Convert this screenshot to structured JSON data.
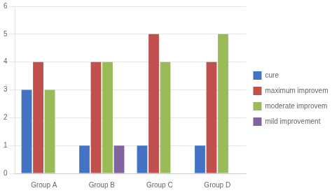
{
  "chart_data": {
    "type": "bar",
    "categories": [
      "Group A",
      "Group B",
      "Group C",
      "Group D"
    ],
    "series": [
      {
        "name": "cure",
        "color": "#4472C4",
        "values": [
          3,
          1,
          1,
          1
        ]
      },
      {
        "name": "maximum improvement",
        "color": "#C0504D",
        "values": [
          4,
          4,
          5,
          4
        ]
      },
      {
        "name": "moderate improvement",
        "color": "#9BBB59",
        "values": [
          3,
          4,
          4,
          5
        ]
      },
      {
        "name": "mild improvement",
        "color": "#8064A2",
        "values": [
          0,
          1,
          0,
          0
        ]
      }
    ],
    "ylim": [
      0,
      6
    ],
    "yticks": [
      0,
      1,
      2,
      3,
      4,
      5,
      6
    ],
    "grid": true,
    "legend": "right"
  }
}
